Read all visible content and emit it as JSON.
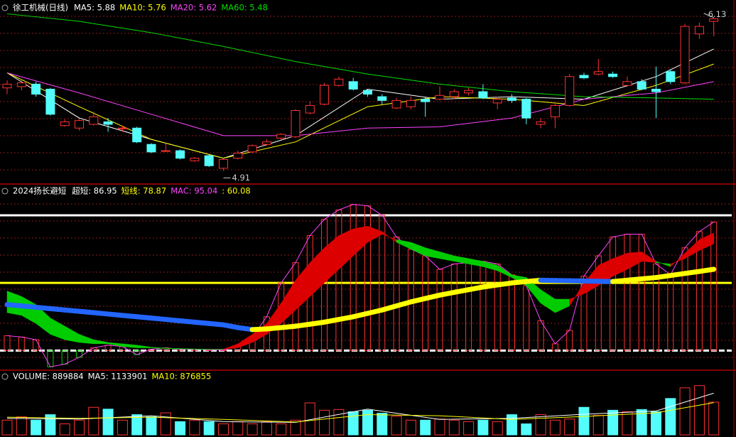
{
  "chart_data": [
    {
      "type": "candlestick",
      "title": "徐工机械(日线)",
      "legend_labels": [
        {
          "text": "MA5: 5.88",
          "color": "#ffffff"
        },
        {
          "text": "MA10: 5.76",
          "color": "#ffff00"
        },
        {
          "text": "MA20: 5.62",
          "color": "#ff44ff"
        },
        {
          "text": "MA60: 5.48",
          "color": "#00e000"
        }
      ],
      "open": [
        5.57,
        5.58,
        5.6,
        5.56,
        5.27,
        5.25,
        5.28,
        5.3,
        5.25,
        5.25,
        5.12,
        5.07,
        5.07,
        4.99,
        5.03,
        4.93,
        5.01,
        5.06,
        5.12,
        5.17,
        5.18,
        5.37,
        5.44,
        5.59,
        5.62,
        5.55,
        5.5,
        5.41,
        5.42,
        5.48,
        5.48,
        5.5,
        5.53,
        5.54,
        5.45,
        5.49,
        5.48,
        5.28,
        5.34,
        5.43,
        5.67,
        5.68,
        5.68,
        5.59,
        5.62,
        5.56,
        5.7,
        5.61,
        6.0,
        6.1
      ],
      "high": [
        5.63,
        5.64,
        5.62,
        5.57,
        5.32,
        5.32,
        5.38,
        5.33,
        5.27,
        5.26,
        5.13,
        5.13,
        5.08,
        5.02,
        5.04,
        5.01,
        5.07,
        5.12,
        5.16,
        5.21,
        5.4,
        5.46,
        5.61,
        5.66,
        5.65,
        5.56,
        5.52,
        5.49,
        5.5,
        5.5,
        5.58,
        5.56,
        5.57,
        5.6,
        5.5,
        5.52,
        5.49,
        5.33,
        5.45,
        5.68,
        5.69,
        5.8,
        5.7,
        5.66,
        5.64,
        5.74,
        5.72,
        6.08,
        6.09,
        6.13
      ],
      "low": [
        5.52,
        5.55,
        5.5,
        5.35,
        5.26,
        5.23,
        5.27,
        5.22,
        5.22,
        5.13,
        5.05,
        5.06,
        5.0,
        4.98,
        4.94,
        4.91,
        5.0,
        5.05,
        5.11,
        5.16,
        5.17,
        5.36,
        5.43,
        5.58,
        5.55,
        5.5,
        5.44,
        5.4,
        5.4,
        5.34,
        5.47,
        5.48,
        5.51,
        5.48,
        5.4,
        5.45,
        5.28,
        5.25,
        5.25,
        5.42,
        5.64,
        5.67,
        5.65,
        5.58,
        5.55,
        5.33,
        5.6,
        5.6,
        5.96,
        5.98
      ],
      "close": [
        5.6,
        5.61,
        5.52,
        5.36,
        5.3,
        5.31,
        5.34,
        5.28,
        5.25,
        5.14,
        5.06,
        5.07,
        5.01,
        5.01,
        4.95,
        5.0,
        5.05,
        5.11,
        5.14,
        5.2,
        5.39,
        5.43,
        5.59,
        5.64,
        5.56,
        5.52,
        5.47,
        5.47,
        5.47,
        5.46,
        5.51,
        5.54,
        5.55,
        5.49,
        5.48,
        5.47,
        5.33,
        5.3,
        5.43,
        5.66,
        5.65,
        5.7,
        5.66,
        5.62,
        5.56,
        5.54,
        5.62,
        6.06,
        6.06,
        6.12
      ],
      "up_color": "#ff3232",
      "down_color": "#54fcfc",
      "ylim": [
        4.81,
        6.27
      ],
      "series": [
        {
          "color": "#ffffff",
          "x": [
            0,
            5,
            10,
            15,
            20,
            25,
            30,
            35,
            40,
            45,
            49
          ],
          "values": [
            5.69,
            5.33,
            5.16,
            5.01,
            5.19,
            5.56,
            5.48,
            5.5,
            5.48,
            5.66,
            5.88
          ]
        },
        {
          "color": "#ffff00",
          "x": [
            0,
            5,
            10,
            15,
            20,
            25,
            30,
            35,
            40,
            45,
            49
          ],
          "values": [
            5.69,
            5.42,
            5.16,
            5.01,
            5.14,
            5.42,
            5.5,
            5.48,
            5.43,
            5.59,
            5.76
          ]
        },
        {
          "color": "#ff44ff",
          "x": [
            0,
            5,
            10,
            15,
            20,
            25,
            30,
            35,
            40,
            45,
            49
          ],
          "values": [
            5.69,
            5.53,
            5.36,
            5.19,
            5.19,
            5.25,
            5.26,
            5.33,
            5.48,
            5.53,
            5.62
          ]
        },
        {
          "color": "#00e000",
          "x": [
            0,
            5,
            10,
            15,
            20,
            25,
            30,
            35,
            40,
            45,
            49
          ],
          "values": [
            6.16,
            6.1,
            6.01,
            5.9,
            5.78,
            5.68,
            5.6,
            5.54,
            5.5,
            5.49,
            5.48
          ]
        }
      ],
      "annotations": [
        {
          "text": "6.13",
          "x": 49,
          "value": 6.13
        },
        {
          "text": "4.91",
          "x": 15,
          "value": 4.91
        }
      ]
    },
    {
      "type": "indicator",
      "title": "2024扬长避短",
      "legend_labels": [
        {
          "text": "超短: 86.95",
          "color": "#ffffff"
        },
        {
          "text": "短线: 78.87",
          "color": "#ffff00"
        },
        {
          "text": "MAC: 95.04",
          "color": "#ff44ff"
        },
        {
          "text": ": 60.08",
          "color": "#ffff00"
        }
      ],
      "ylim": [
        -14,
        121
      ],
      "reference_lines": [
        {
          "value": 100,
          "color": "#ffffff"
        },
        {
          "value": 50,
          "color": "#ffff00"
        },
        {
          "value": 0,
          "color": "#ffffff"
        }
      ],
      "bars": {
        "values": [
          11,
          10,
          8,
          -12,
          -10,
          -5,
          2,
          4,
          3,
          -3,
          1,
          2,
          1,
          1,
          0.5,
          0.5,
          3,
          10,
          25,
          50,
          65,
          85,
          97,
          104,
          108,
          107,
          100,
          84,
          75,
          70,
          60,
          64,
          65,
          66,
          64,
          56,
          48,
          22,
          5,
          15,
          55,
          70,
          84,
          86,
          86,
          64,
          56,
          76,
          88,
          95.04
        ],
        "up_color": "#ff3232",
        "down_color": "#00cc00",
        "line_color": "#ff44ff"
      },
      "band": {
        "fast": [
          28,
          26,
          20,
          12,
          8,
          6,
          5,
          5,
          3,
          2,
          2,
          1.5,
          1.2,
          1,
          0.8,
          1,
          5,
          12,
          20,
          35,
          52,
          65,
          76,
          85,
          90,
          92,
          88,
          80,
          75,
          70,
          68,
          66,
          64,
          62,
          59,
          54,
          48,
          35,
          28,
          33,
          50,
          63,
          68,
          72,
          73,
          66,
          62,
          72,
          82,
          86.95
        ],
        "slow": [
          44,
          40,
          34,
          24,
          18,
          12,
          8,
          6,
          5,
          4,
          2.5,
          1.8,
          1.5,
          1.2,
          1,
          1,
          2,
          6,
          12,
          20,
          30,
          40,
          50,
          60,
          70,
          80,
          86,
          82,
          80,
          76,
          73,
          70,
          68,
          66,
          63,
          56,
          54,
          45,
          38,
          38,
          42,
          48,
          55,
          60,
          66,
          65,
          64,
          68,
          74,
          78.87
        ],
        "up_color": "#dd0000",
        "down_color": "#00cc00"
      },
      "trend": {
        "values": [
          34,
          33,
          32,
          31,
          30,
          29,
          28,
          27,
          26,
          25,
          24,
          23,
          22,
          21,
          20,
          19,
          17,
          15.5,
          16,
          17,
          18,
          19.5,
          21,
          23,
          25,
          27.5,
          30,
          33,
          36,
          38.5,
          41,
          43,
          45,
          47,
          48.5,
          50,
          51,
          52,
          51.8,
          51.6,
          51.4,
          51.2,
          51,
          52,
          53,
          54,
          55.5,
          57,
          58.5,
          60.08
        ],
        "up_color": "#ffff00",
        "down_color": "#2266ff"
      }
    },
    {
      "type": "bar",
      "legend_labels": [
        {
          "text": "VOLUME: 889884",
          "color": "#ffffff"
        },
        {
          "text": "MA5: 1133901",
          "color": "#ffffff"
        },
        {
          "text": "MA10: 876855",
          "color": "#ffff00"
        }
      ],
      "values": [
        400000,
        490000,
        400000,
        550000,
        300000,
        400000,
        750000,
        700000,
        400000,
        550000,
        490000,
        600000,
        360000,
        400000,
        360000,
        300000,
        360000,
        300000,
        360000,
        300000,
        400000,
        870000,
        670000,
        690000,
        630000,
        670000,
        590000,
        510000,
        400000,
        400000,
        430000,
        400000,
        360000,
        400000,
        360000,
        550000,
        300000,
        550000,
        400000,
        430000,
        750000,
        530000,
        670000,
        630000,
        690000,
        630000,
        990000,
        1280000,
        1340000,
        889884
      ],
      "ylim": [
        0,
        1740000
      ],
      "series": [
        {
          "color": "#ffffff",
          "x": [
            0,
            5,
            10,
            15,
            20,
            25,
            30,
            35,
            40,
            45,
            49
          ],
          "values": [
            450000,
            430000,
            520000,
            360000,
            340000,
            700000,
            420000,
            450000,
            560000,
            650000,
            1133901
          ]
        },
        {
          "color": "#ffff00",
          "x": [
            0,
            5,
            10,
            15,
            20,
            25,
            30,
            35,
            40,
            45,
            49
          ],
          "values": [
            480000,
            450000,
            480000,
            420000,
            350000,
            550000,
            520000,
            420000,
            500000,
            600000,
            876855
          ]
        }
      ]
    }
  ]
}
